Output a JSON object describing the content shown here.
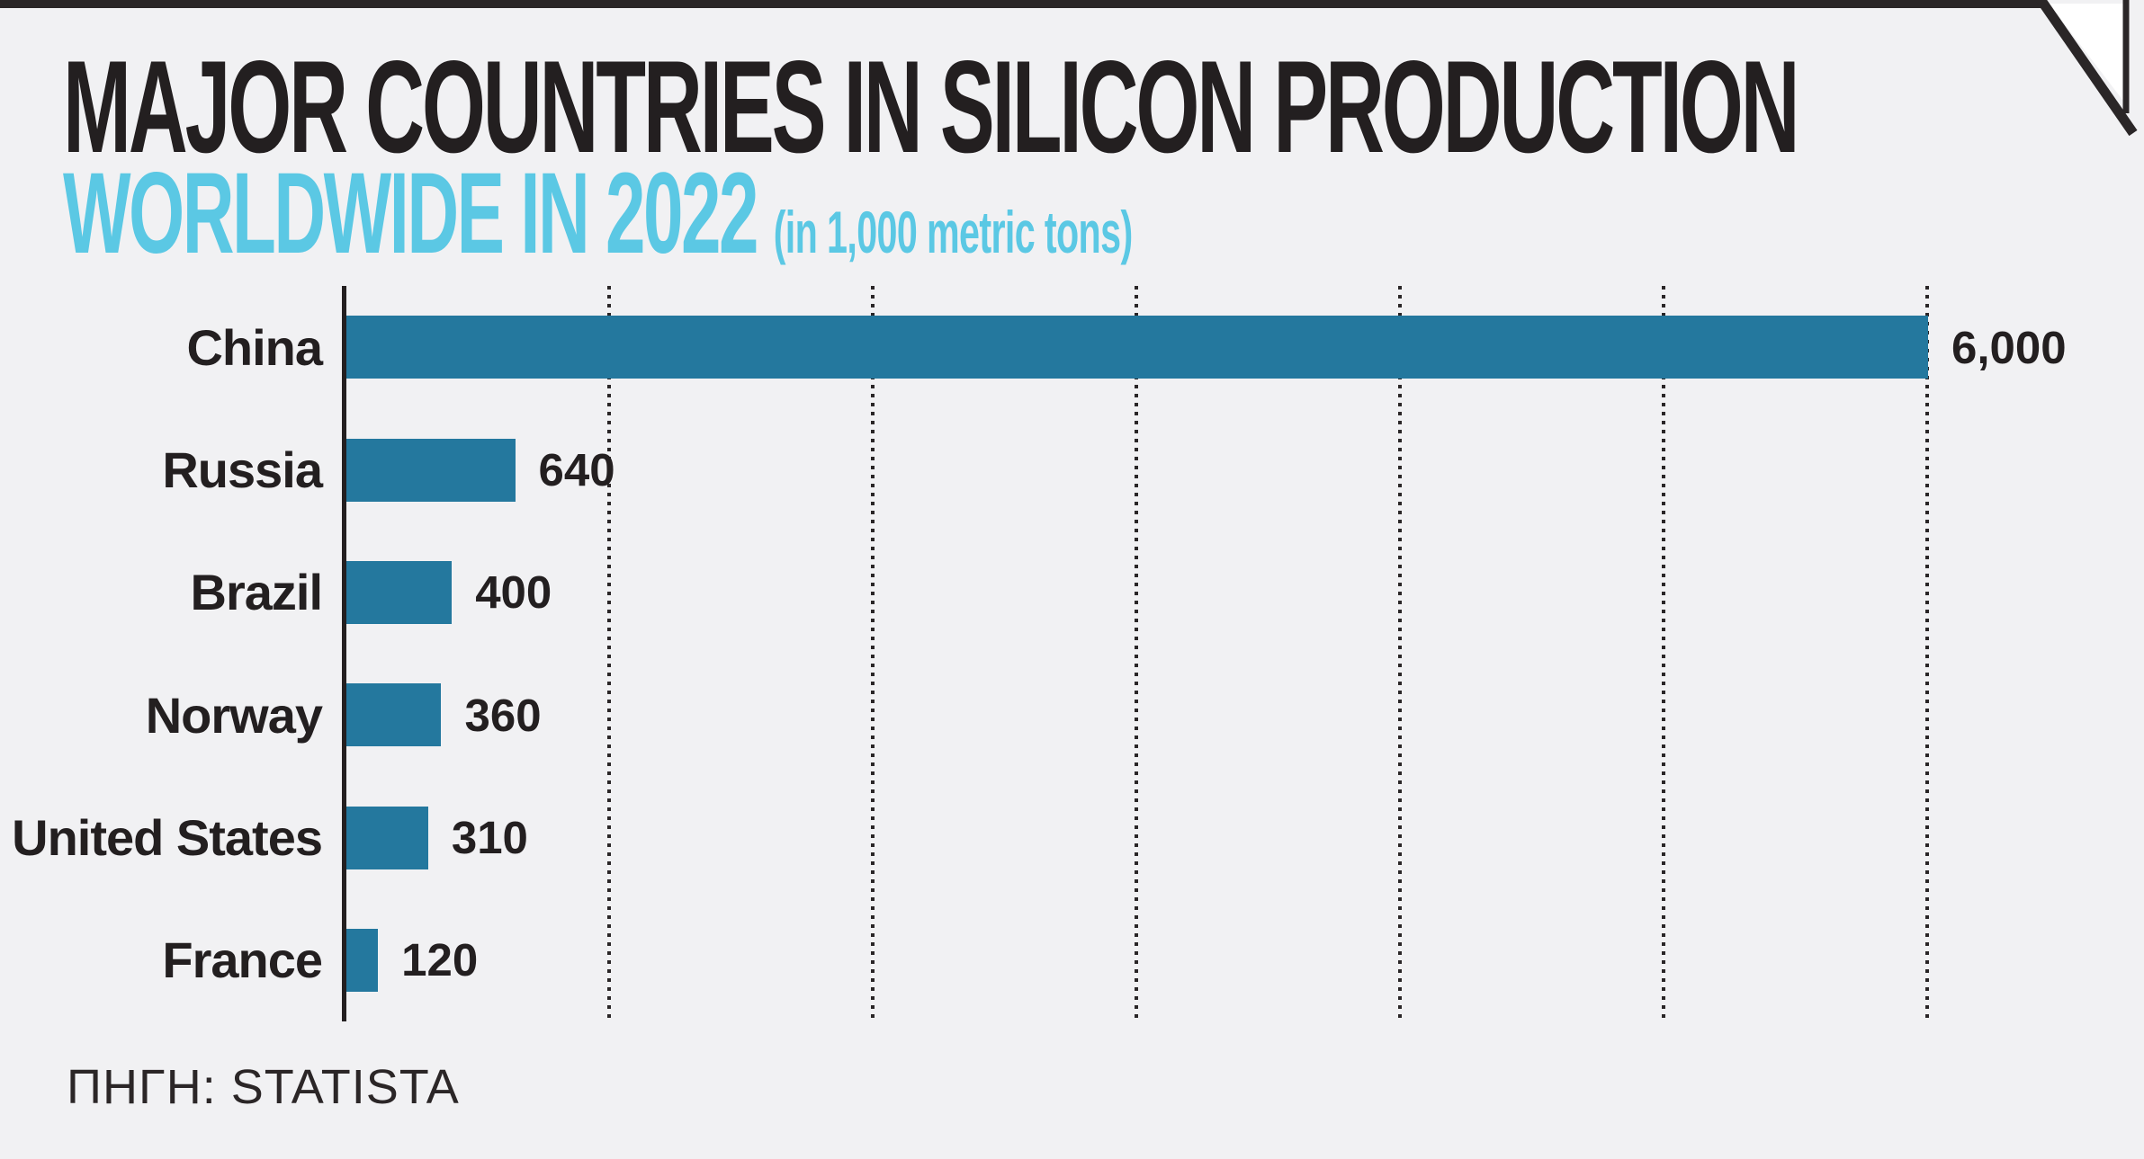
{
  "header": {
    "title": "MAJOR COUNTRIES IN SILICON PRODUCTION",
    "subtitle": "WORLDWIDE IN 2022",
    "subtitle_note": "(in 1,000 metric tons)"
  },
  "source": {
    "label": "ΠΗΓΗ: STATISTA"
  },
  "colors": {
    "background": "#F1F1F3",
    "border_dark": "#2A2627",
    "title_text": "#231F20",
    "subtitle_cyan": "#5BC8E4",
    "bar_teal": "#24789E"
  },
  "chart_data": {
    "type": "bar",
    "orientation": "horizontal",
    "title": "MAJOR COUNTRIES IN SILICON PRODUCTION WORLDWIDE IN 2022",
    "unit": "1,000 metric tons",
    "categories": [
      "China",
      "Russia",
      "Brazil",
      "Norway",
      "United States",
      "France"
    ],
    "values": [
      6000,
      640,
      400,
      360,
      310,
      120
    ],
    "value_labels": [
      "6,000",
      "640",
      "400",
      "360",
      "310",
      "120"
    ],
    "xlim": [
      0,
      6000
    ],
    "gridline_values": [
      1000,
      2000,
      3000,
      4000,
      5000,
      6000
    ],
    "grid_style": "vertical-dotted",
    "legend": "none",
    "bar_color": "#24789E"
  }
}
